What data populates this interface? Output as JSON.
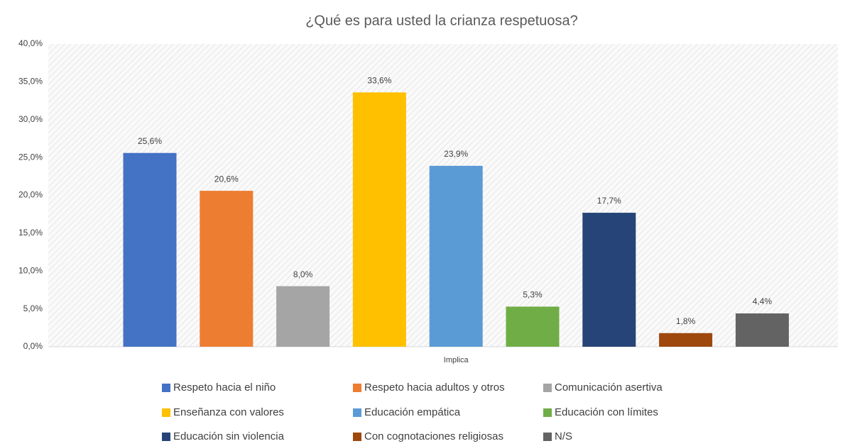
{
  "chart_data": {
    "type": "bar",
    "title": "¿Qué es para usted la crianza respetuosa?",
    "categories": [
      "Implica"
    ],
    "series": [
      {
        "name": "Respeto hacia el niño",
        "color": "#4472c4",
        "values": [
          25.6
        ],
        "value_labels": [
          "25,6%"
        ]
      },
      {
        "name": "Respeto hacia adultos y otros",
        "color": "#ed7d31",
        "values": [
          20.6
        ],
        "value_labels": [
          "20,6%"
        ]
      },
      {
        "name": "Comunicación asertiva",
        "color": "#a5a5a5",
        "values": [
          8.0
        ],
        "value_labels": [
          "8,0%"
        ]
      },
      {
        "name": "Enseñanza con valores",
        "color": "#ffc000",
        "values": [
          33.6
        ],
        "value_labels": [
          "33,6%"
        ]
      },
      {
        "name": "Educación empática",
        "color": "#5b9bd5",
        "values": [
          23.9
        ],
        "value_labels": [
          "23,9%"
        ]
      },
      {
        "name": "Educación con límites",
        "color": "#70ad47",
        "values": [
          5.3
        ],
        "value_labels": [
          "5,3%"
        ]
      },
      {
        "name": "Educación sin violencia",
        "color": "#264478",
        "values": [
          17.7
        ],
        "value_labels": [
          "17,7%"
        ]
      },
      {
        "name": "Con cognotaciones religiosas",
        "color": "#9e480e",
        "values": [
          1.8
        ],
        "value_labels": [
          "1,8%"
        ]
      },
      {
        "name": "N/S",
        "color": "#636363",
        "values": [
          4.4
        ],
        "value_labels": [
          "4,4%"
        ]
      }
    ],
    "ylim": [
      0,
      40
    ],
    "yticks": [
      {
        "value": 0,
        "label": "0,0%"
      },
      {
        "value": 5,
        "label": "5,0%"
      },
      {
        "value": 10,
        "label": "10,0%"
      },
      {
        "value": 15,
        "label": "15,0%"
      },
      {
        "value": 20,
        "label": "20,0%"
      },
      {
        "value": 25,
        "label": "25,0%"
      },
      {
        "value": 30,
        "label": "30,0%"
      },
      {
        "value": 35,
        "label": "35,0%"
      },
      {
        "value": 40,
        "label": "40,0%"
      }
    ]
  }
}
